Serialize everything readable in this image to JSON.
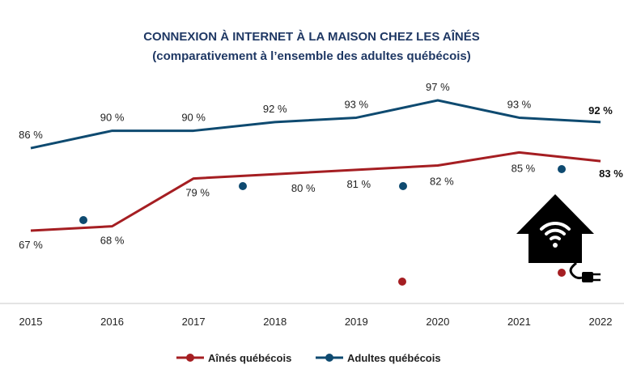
{
  "chart_data": {
    "type": "line",
    "title": "CONNEXION À INTERNET À LA MAISON CHEZ LES AÎNÉS",
    "subtitle": "(comparativement à l’ensemble des adultes québécois)",
    "x": [
      "2015",
      "2016",
      "2017",
      "2018",
      "2019",
      "2020",
      "2021",
      "2022"
    ],
    "ylim": [
      50,
      100
    ],
    "grid": false,
    "legend_position": "bottom",
    "series": [
      {
        "name": "Aînés québécois",
        "color": "#a51e22",
        "values": [
          67,
          68,
          79,
          80,
          81,
          82,
          85,
          83
        ],
        "labels": [
          "67 %",
          "68 %",
          "79 %",
          "80 %",
          "81 %",
          "82 %",
          "85 %",
          "83 %"
        ]
      },
      {
        "name": "Adultes québécois",
        "color": "#0e4a70",
        "values": [
          86,
          90,
          90,
          92,
          93,
          97,
          93,
          92
        ],
        "labels": [
          "86 %",
          "90 %",
          "90 %",
          "92 %",
          "93 %",
          "97 %",
          "93 %",
          "92 %"
        ]
      }
    ]
  },
  "decor": {
    "icon": "house-wifi-plug-icon",
    "dot_colors": [
      "#a51e22",
      "#0e4a70"
    ]
  }
}
